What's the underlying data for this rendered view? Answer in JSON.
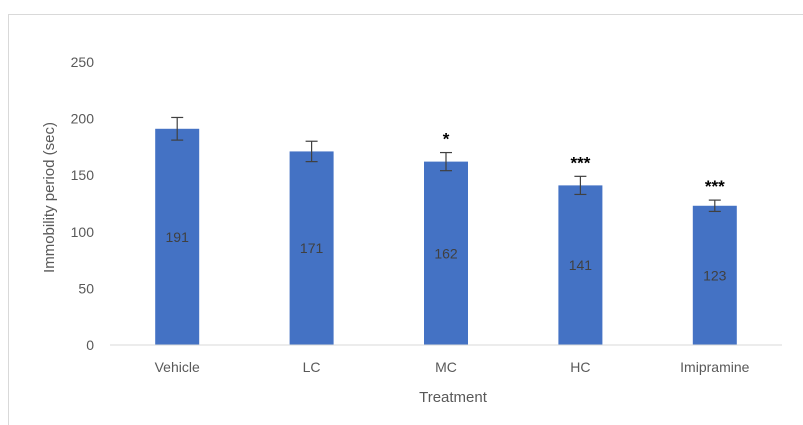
{
  "chart_data": {
    "type": "bar",
    "categories": [
      "Vehicle",
      "LC",
      "MC",
      "HC",
      "Imipramine"
    ],
    "values": [
      191,
      171,
      162,
      141,
      123
    ],
    "error": [
      10,
      9,
      8,
      8,
      5
    ],
    "significance": [
      "",
      "",
      "*",
      "***",
      "***"
    ],
    "data_labels": [
      "191",
      "171",
      "162",
      "141",
      "123"
    ],
    "xlabel": "Treatment",
    "ylabel": "Immobility period (sec)",
    "ylim": [
      0,
      250
    ],
    "yticks": [
      0,
      50,
      100,
      150,
      200,
      250
    ],
    "ytick_labels": [
      "0",
      "50",
      "100",
      "150",
      "200",
      "250"
    ],
    "grid": false,
    "legend": "none",
    "bar_color": "#4472c4"
  }
}
